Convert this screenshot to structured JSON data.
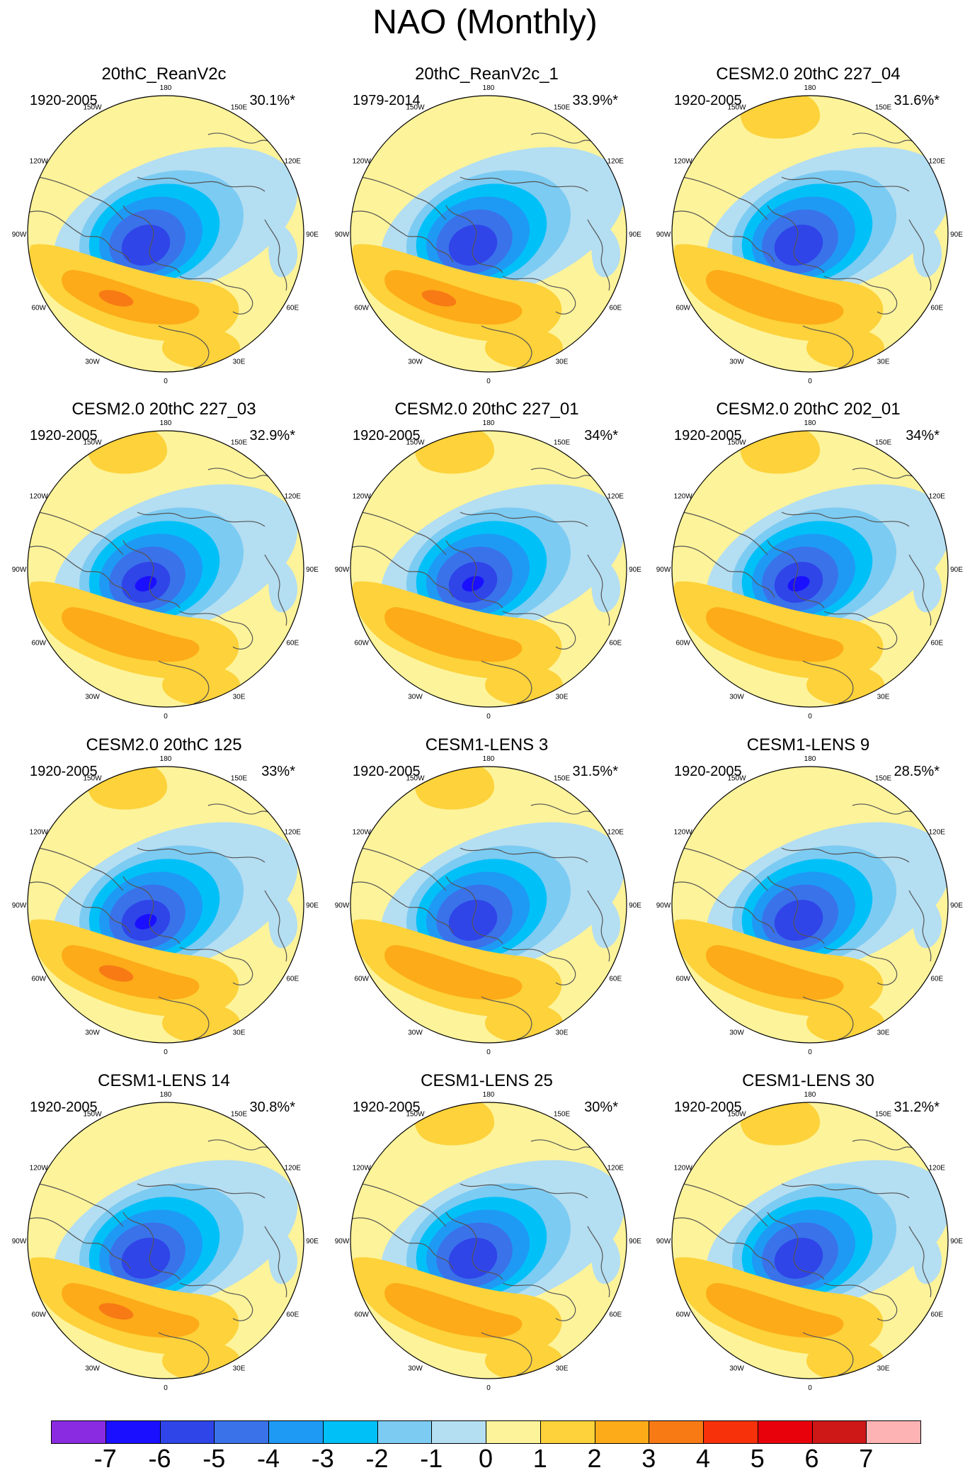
{
  "title": "NAO (Monthly)",
  "panels": [
    {
      "title": "20thC_ReanV2c",
      "years": "1920-2005",
      "pct": "30.1%*"
    },
    {
      "title": "20thC_ReanV2c_1",
      "years": "1979-2014",
      "pct": "33.9%*"
    },
    {
      "title": "CESM2.0 20thC 227_04",
      "years": "1920-2005",
      "pct": "31.6%*"
    },
    {
      "title": "CESM2.0 20thC 227_03",
      "years": "1920-2005",
      "pct": "32.9%*"
    },
    {
      "title": "CESM2.0 20thC 227_01",
      "years": "1920-2005",
      "pct": "34%*"
    },
    {
      "title": "CESM2.0 20thC 202_01",
      "years": "1920-2005",
      "pct": "34%*"
    },
    {
      "title": "CESM2.0 20thC 125",
      "years": "1920-2005",
      "pct": "33%*"
    },
    {
      "title": "CESM1-LENS 3",
      "years": "1920-2005",
      "pct": "31.5%*"
    },
    {
      "title": "CESM1-LENS 9",
      "years": "1920-2005",
      "pct": "28.5%*"
    },
    {
      "title": "CESM1-LENS 14",
      "years": "1920-2005",
      "pct": "30.8%*"
    },
    {
      "title": "CESM1-LENS 25",
      "years": "1920-2005",
      "pct": "30%*"
    },
    {
      "title": "CESM1-LENS 30",
      "years": "1920-2005",
      "pct": "31.2%*"
    }
  ],
  "longitude_labels": [
    "180",
    "150E",
    "120E",
    "90E",
    "60E",
    "30E",
    "0",
    "30W",
    "60W",
    "90W",
    "120W",
    "150W"
  ],
  "colorbar": {
    "labels": [
      "-7",
      "-6",
      "-5",
      "-4",
      "-3",
      "-2",
      "-1",
      "0",
      "1",
      "2",
      "3",
      "4",
      "5",
      "6",
      "7"
    ],
    "colors": [
      "#8a2be2",
      "#1a10ff",
      "#2f45e8",
      "#3a72ea",
      "#1e9af5",
      "#00c0f8",
      "#7ccbf2",
      "#b4def2",
      "#fdf39a",
      "#fdd23a",
      "#fdab18",
      "#f77a15",
      "#f7310a",
      "#e8000a",
      "#ce1818",
      "#fdb3b3"
    ]
  },
  "fill_colors": {
    "background": "#fdf39a",
    "neg1": "#b4def2",
    "neg2": "#7ccbf2",
    "neg3": "#00c0f8",
    "neg4": "#1e9af5",
    "neg5": "#3a72ea",
    "neg6": "#2f45e8",
    "neg7": "#1a10ff",
    "pos2": "#fdd23a",
    "pos3": "#fdab18",
    "pos4": "#f77a15",
    "coast": "#555555"
  }
}
